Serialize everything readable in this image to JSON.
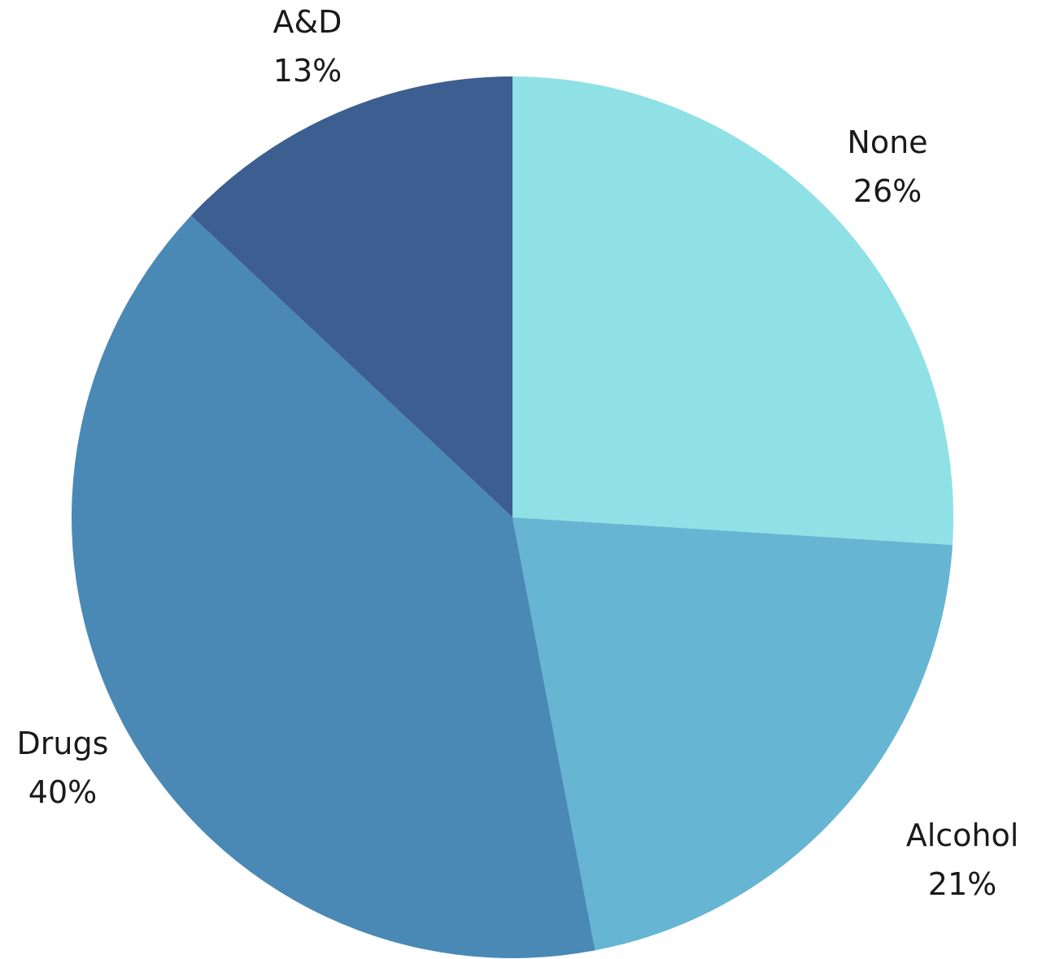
{
  "chart_data": {
    "type": "pie",
    "slices": [
      {
        "label": "None",
        "percent_label": "26%",
        "value": 26,
        "color": "#8fe1e6"
      },
      {
        "label": "Alcohol",
        "percent_label": "21%",
        "value": 21,
        "color": "#66b5d3"
      },
      {
        "label": "Drugs",
        "percent_label": "40%",
        "value": 40,
        "color": "#4a89b5"
      },
      {
        "label": "A&D",
        "percent_label": "13%",
        "value": 13,
        "color": "#3d5e90"
      }
    ],
    "start": "top",
    "direction": "clockwise"
  }
}
